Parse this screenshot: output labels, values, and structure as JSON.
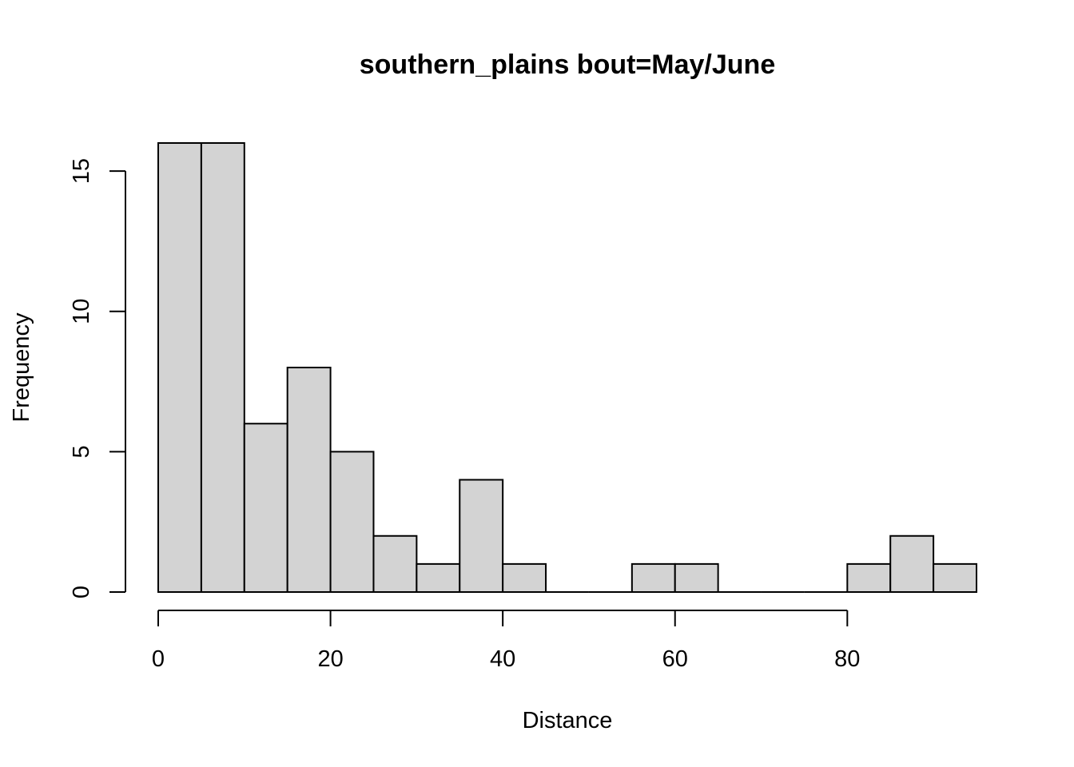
{
  "chart_data": {
    "type": "bar",
    "title": "southern_plains  bout=May/June",
    "xlabel": "Distance",
    "ylabel": "Frequency",
    "bin_width": 5,
    "bins": [
      {
        "start": 0,
        "end": 5,
        "count": 16
      },
      {
        "start": 5,
        "end": 10,
        "count": 16
      },
      {
        "start": 10,
        "end": 15,
        "count": 6
      },
      {
        "start": 15,
        "end": 20,
        "count": 8
      },
      {
        "start": 20,
        "end": 25,
        "count": 5
      },
      {
        "start": 25,
        "end": 30,
        "count": 2
      },
      {
        "start": 30,
        "end": 35,
        "count": 1
      },
      {
        "start": 35,
        "end": 40,
        "count": 4
      },
      {
        "start": 40,
        "end": 45,
        "count": 1
      },
      {
        "start": 45,
        "end": 50,
        "count": 0
      },
      {
        "start": 50,
        "end": 55,
        "count": 0
      },
      {
        "start": 55,
        "end": 60,
        "count": 1
      },
      {
        "start": 60,
        "end": 65,
        "count": 1
      },
      {
        "start": 65,
        "end": 70,
        "count": 0
      },
      {
        "start": 70,
        "end": 75,
        "count": 0
      },
      {
        "start": 75,
        "end": 80,
        "count": 0
      },
      {
        "start": 80,
        "end": 85,
        "count": 1
      },
      {
        "start": 85,
        "end": 90,
        "count": 2
      },
      {
        "start": 90,
        "end": 95,
        "count": 1
      }
    ],
    "xlim": [
      0,
      95
    ],
    "ylim": [
      0,
      16
    ],
    "x_ticks": [
      0,
      20,
      40,
      60,
      80
    ],
    "y_ticks": [
      0,
      5,
      10,
      15
    ],
    "grid": false,
    "legend": "none",
    "colors": {
      "bar_fill": "#d3d3d3",
      "bar_stroke": "#000000"
    }
  }
}
